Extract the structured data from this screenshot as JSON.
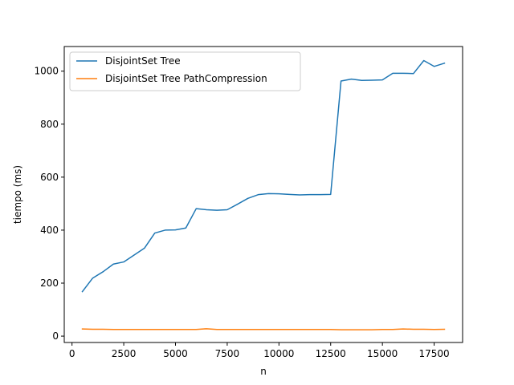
{
  "chart_data": {
    "type": "line",
    "title": "",
    "xlabel": "n",
    "ylabel": "tiempo (ms)",
    "xlim": [
      -375,
      18875
    ],
    "ylim": [
      -24,
      1093
    ],
    "xticks": [
      0,
      2500,
      5000,
      7500,
      10000,
      12500,
      15000,
      17500
    ],
    "xtick_labels": [
      "0",
      "2500",
      "5000",
      "7500",
      "10000",
      "12500",
      "15000",
      "17500"
    ],
    "yticks": [
      0,
      200,
      400,
      600,
      800,
      1000
    ],
    "ytick_labels": [
      "0",
      "200",
      "400",
      "600",
      "800",
      "1000"
    ],
    "grid": false,
    "legend": {
      "position": "top-left"
    },
    "x": [
      500,
      1000,
      1500,
      2000,
      2500,
      3000,
      3500,
      4000,
      4500,
      5000,
      5500,
      6000,
      6500,
      7000,
      7500,
      8000,
      8500,
      9000,
      9500,
      10000,
      10500,
      11000,
      11500,
      12000,
      12500,
      13000,
      13500,
      14000,
      14500,
      15000,
      15500,
      16000,
      16500,
      17000,
      17500,
      18000
    ],
    "series": [
      {
        "name": "DisjointSet Tree",
        "color": "#1f77b4",
        "values": [
          168,
          219,
          243,
          272,
          280,
          306,
          332,
          389,
          400,
          401,
          408,
          481,
          477,
          475,
          477,
          498,
          520,
          534,
          538,
          537,
          535,
          533,
          534,
          534,
          535,
          963,
          970,
          965,
          966,
          967,
          992,
          992,
          991,
          1040,
          1018,
          1030
        ]
      },
      {
        "name": "DisjointSet Tree PathCompression",
        "color": "#ff7f0e",
        "values": [
          27,
          26,
          26,
          25,
          25,
          25,
          25,
          25,
          25,
          25,
          25,
          25,
          28,
          25,
          25,
          25,
          25,
          25,
          25,
          25,
          25,
          25,
          25,
          25,
          25,
          24,
          24,
          24,
          24,
          25,
          25,
          27,
          26,
          26,
          25,
          26
        ]
      }
    ]
  }
}
